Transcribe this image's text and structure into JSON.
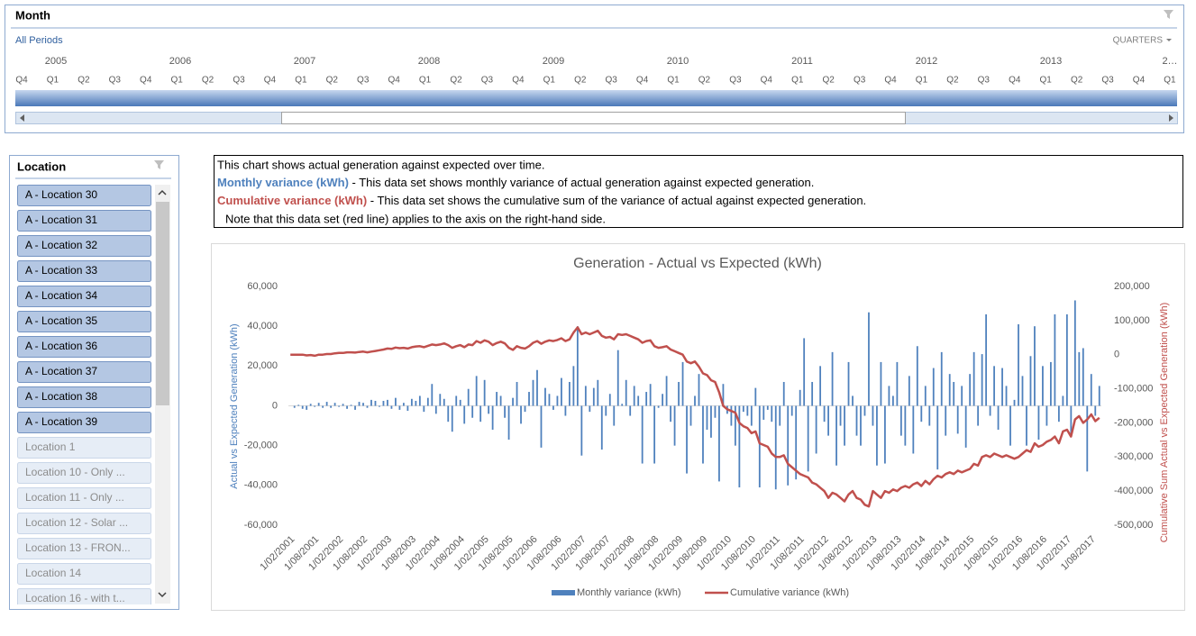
{
  "timeline": {
    "title": "Month",
    "period": "All Periods",
    "level": "QUARTERS",
    "years": [
      "2005",
      "2006",
      "2007",
      "2008",
      "2009",
      "2010",
      "2011",
      "2012",
      "2013",
      "2…"
    ],
    "quarters": [
      "Q4",
      "Q1",
      "Q2",
      "Q3",
      "Q4",
      "Q1",
      "Q2",
      "Q3",
      "Q4",
      "Q1",
      "Q2",
      "Q3",
      "Q4",
      "Q1",
      "Q2",
      "Q3",
      "Q4",
      "Q1",
      "Q2",
      "Q3",
      "Q4",
      "Q1",
      "Q2",
      "Q3",
      "Q4",
      "Q1",
      "Q2",
      "Q3",
      "Q4",
      "Q1",
      "Q2",
      "Q3",
      "Q4",
      "Q1",
      "Q2",
      "Q3",
      "Q4",
      "Q1"
    ]
  },
  "location": {
    "title": "Location",
    "items": [
      {
        "label": "A - Location 30",
        "selected": true
      },
      {
        "label": "A - Location 31",
        "selected": true
      },
      {
        "label": "A - Location 32",
        "selected": true
      },
      {
        "label": "A - Location 33",
        "selected": true
      },
      {
        "label": "A - Location 34",
        "selected": true
      },
      {
        "label": "A - Location 35",
        "selected": true
      },
      {
        "label": "A - Location 36",
        "selected": true
      },
      {
        "label": "A - Location 37",
        "selected": true
      },
      {
        "label": "A - Location 38",
        "selected": true
      },
      {
        "label": "A - Location 39",
        "selected": true
      },
      {
        "label": "Location 1",
        "selected": false
      },
      {
        "label": "Location 10 - Only ...",
        "selected": false
      },
      {
        "label": "Location 11 - Only ...",
        "selected": false
      },
      {
        "label": "Location 12 - Solar ...",
        "selected": false
      },
      {
        "label": "Location 13 - FRON...",
        "selected": false
      },
      {
        "label": "Location 14",
        "selected": false
      },
      {
        "label": "Location 16 - with t...",
        "selected": false
      }
    ]
  },
  "note": {
    "line1": "This chart shows actual generation against expected over time.",
    "line2_key": "Monthly variance (kWh)",
    "line2_text": " - This data set shows monthly variance of actual generation against expected generation.",
    "line3_key": "Cumulative variance (kWh)",
    "line3_text": " - This data set shows the cumulative sum of the variance of actual against expected generation.",
    "line4": "Note that this data set (red line) applies to the axis on the right-hand side."
  },
  "chart_data": {
    "type": "bar-line",
    "title": "Generation - Actual vs Expected (kWh)",
    "y_label": "Actual vs Expected Generation (kWh)",
    "y2_label": "Cumulative Sum Actual vs Expected Generation (kWh)",
    "ylim": [
      -60000,
      60000
    ],
    "yticks": [
      {
        "value": -60000,
        "label": "-60,000"
      },
      {
        "value": -40000,
        "label": "-40,000"
      },
      {
        "value": -20000,
        "label": "-20,000"
      },
      0,
      {
        "value": 20000,
        "label": "20,000"
      },
      {
        "value": 40000,
        "label": "40,000"
      },
      {
        "value": 60000,
        "label": "60,000"
      }
    ],
    "y2lim": [
      -500000,
      200000
    ],
    "y2ticks": [
      {
        "value": -500000,
        "label": "-500,000"
      },
      {
        "value": -400000,
        "label": "-400,000"
      },
      {
        "value": -300000,
        "label": "-300,000"
      },
      {
        "value": -200000,
        "label": "-200,000"
      },
      {
        "value": -100000,
        "label": "-100,000"
      },
      0,
      {
        "value": 100000,
        "label": "100,000"
      },
      {
        "value": 200000,
        "label": "200,000"
      }
    ],
    "grid": false,
    "legend": "bottom",
    "categories": [
      "1/02/2001",
      null,
      null,
      null,
      null,
      null,
      "1/08/2001",
      null,
      null,
      null,
      null,
      null,
      "1/02/2002",
      null,
      null,
      null,
      null,
      null,
      "1/08/2002",
      null,
      null,
      null,
      null,
      null,
      "1/02/2003",
      null,
      null,
      null,
      null,
      null,
      "1/08/2003",
      null,
      null,
      null,
      null,
      null,
      "1/02/2004",
      null,
      null,
      null,
      null,
      null,
      "1/08/2004",
      null,
      null,
      null,
      null,
      null,
      "1/02/2005",
      null,
      null,
      null,
      null,
      null,
      "1/08/2005",
      null,
      null,
      null,
      null,
      null,
      "1/02/2006",
      null,
      null,
      null,
      null,
      null,
      "1/08/2006",
      null,
      null,
      null,
      null,
      null,
      "1/02/2007",
      null,
      null,
      null,
      null,
      null,
      "1/08/2007",
      null,
      null,
      null,
      null,
      null,
      "1/02/2008",
      null,
      null,
      null,
      null,
      null,
      "1/08/2008",
      null,
      null,
      null,
      null,
      null,
      "1/02/2009",
      null,
      null,
      null,
      null,
      null,
      "1/08/2009",
      null,
      null,
      null,
      null,
      null,
      "1/02/2010",
      null,
      null,
      null,
      null,
      null,
      "1/08/2010",
      null,
      null,
      null,
      null,
      null,
      "1/02/2011",
      null,
      null,
      null,
      null,
      null,
      "1/08/2011",
      null,
      null,
      null,
      null,
      null,
      "1/02/2012",
      null,
      null,
      null,
      null,
      null,
      "1/08/2012",
      null,
      null,
      null,
      null,
      null,
      "1/02/2013",
      null,
      null,
      null,
      null,
      null,
      "1/08/2013",
      null,
      null,
      null,
      null,
      null,
      "1/02/2014",
      null,
      null,
      null,
      null,
      null,
      "1/08/2014",
      null,
      null,
      null,
      null,
      null,
      "1/02/2015",
      null,
      null,
      null,
      null,
      null,
      "1/08/2015",
      null,
      null,
      null,
      null,
      null,
      "1/02/2016",
      null,
      null,
      null,
      null,
      null,
      "1/08/2016",
      null,
      null,
      null,
      null,
      null,
      "1/02/2017",
      null,
      null,
      null,
      null,
      null,
      "1/08/2017",
      null,
      null
    ],
    "series": [
      {
        "name": "Monthly variance (kWh)",
        "color": "#4f81bd",
        "values": [
          0,
          -1000,
          500,
          -1500,
          -2000,
          1000,
          -500,
          1500,
          -1000,
          2000,
          -1000,
          1500,
          -500,
          1000,
          -1500,
          500,
          -2000,
          2000,
          1500,
          -1000,
          3000,
          2500,
          -500,
          2500,
          3000,
          -1500,
          4000,
          -2000,
          1500,
          -2500,
          3500,
          2500,
          5000,
          -3000,
          4000,
          11000,
          -4000,
          6000,
          3500,
          -8000,
          -13000,
          5000,
          3000,
          -9000,
          8500,
          -6000,
          15000,
          -8000,
          13000,
          -4000,
          -12000,
          7000,
          5000,
          -6000,
          -17000,
          4000,
          12000,
          -9000,
          -3000,
          7000,
          13000,
          18000,
          -21000,
          9000,
          6000,
          -2000,
          5000,
          14000,
          -5000,
          12000,
          20000,
          40000,
          -25000,
          10000,
          -3000,
          9000,
          13000,
          -22000,
          -5000,
          6000,
          -10000,
          28000,
          1000,
          13000,
          -5000,
          10000,
          5000,
          -29000,
          7000,
          11000,
          -29000,
          -1000,
          6000,
          15000,
          -8000,
          -20000,
          12000,
          22000,
          -34000,
          -10000,
          5000,
          16000,
          -29000,
          -12000,
          -16000,
          -6000,
          -38000,
          11000,
          -4000,
          -10000,
          -20000,
          -41000,
          -3000,
          -5000,
          -10000,
          9000,
          -41000,
          -7000,
          -2000,
          -8000,
          -42000,
          -10000,
          12000,
          -40000,
          -5000,
          -37000,
          8000,
          34000,
          -33000,
          12000,
          -24000,
          20000,
          -8000,
          -15000,
          27000,
          -30000,
          -10000,
          -20000,
          22000,
          5000,
          -15000,
          -20000,
          -5000,
          47000,
          -10000,
          -30000,
          22000,
          -29000,
          10000,
          5000,
          22000,
          -15000,
          -20000,
          15000,
          -24000,
          30000,
          -8000,
          10000,
          -10000,
          19000,
          -32000,
          27000,
          -15000,
          16000,
          12000,
          -14000,
          10000,
          -21000,
          16000,
          27000,
          -10000,
          26000,
          46000,
          -5000,
          20000,
          -12000,
          19000,
          10000,
          -20000,
          3000,
          41000,
          15000,
          -20000,
          25000,
          40000,
          -17000,
          20000,
          -10000,
          22000,
          46000,
          -8000,
          5000,
          46000,
          -15000,
          53000,
          27000,
          29000,
          -33000,
          16000,
          -5000,
          10000
        ]
      },
      {
        "name": "Cumulative variance (kWh)",
        "color": "#c0504d",
        "axis": "y2",
        "values": [
          0,
          0,
          0,
          0,
          -2000,
          -1000,
          -3000,
          0,
          0,
          2000,
          2000,
          4000,
          5000,
          5000,
          7000,
          7000,
          6000,
          8000,
          9000,
          7000,
          9000,
          11000,
          13000,
          15000,
          18000,
          17000,
          21000,
          19000,
          20000,
          18000,
          22000,
          24000,
          25000,
          22000,
          26000,
          30000,
          28000,
          30000,
          33000,
          28000,
          20000,
          25000,
          28000,
          22000,
          30000,
          28000,
          40000,
          35000,
          42000,
          38000,
          28000,
          34000,
          38000,
          33000,
          20000,
          14000,
          25000,
          20000,
          18000,
          25000,
          35000,
          40000,
          32000,
          38000,
          42000,
          40000,
          43000,
          48000,
          40000,
          45000,
          65000,
          80000,
          60000,
          65000,
          60000,
          65000,
          70000,
          55000,
          50000,
          52000,
          45000,
          60000,
          58000,
          60000,
          55000,
          50000,
          45000,
          35000,
          40000,
          42000,
          25000,
          20000,
          22000,
          25000,
          15000,
          10000,
          5000,
          0,
          -20000,
          -25000,
          -20000,
          -35000,
          -55000,
          -60000,
          -75000,
          -80000,
          -110000,
          -150000,
          -160000,
          -165000,
          -170000,
          -200000,
          -210000,
          -215000,
          -230000,
          -225000,
          -260000,
          -265000,
          -270000,
          -290000,
          -300000,
          -300000,
          -295000,
          -320000,
          -330000,
          -340000,
          -350000,
          -355000,
          -360000,
          -375000,
          -380000,
          -390000,
          -400000,
          -420000,
          -405000,
          -410000,
          -420000,
          -430000,
          -410000,
          -400000,
          -420000,
          -425000,
          -440000,
          -445000,
          -400000,
          -410000,
          -420000,
          -400000,
          -405000,
          -395000,
          -400000,
          -390000,
          -385000,
          -390000,
          -380000,
          -375000,
          -385000,
          -370000,
          -380000,
          -365000,
          -355000,
          -360000,
          -350000,
          -345000,
          -350000,
          -340000,
          -345000,
          -340000,
          -335000,
          -320000,
          -325000,
          -300000,
          -295000,
          -300000,
          -290000,
          -295000,
          -300000,
          -295000,
          -300000,
          -305000,
          -300000,
          -290000,
          -280000,
          -285000,
          -260000,
          -270000,
          -265000,
          -255000,
          -250000,
          -240000,
          -260000,
          -225000,
          -220000,
          -240000,
          -190000,
          -180000,
          -200000,
          -190000,
          -175000,
          -195000,
          -185000
        ]
      }
    ]
  }
}
